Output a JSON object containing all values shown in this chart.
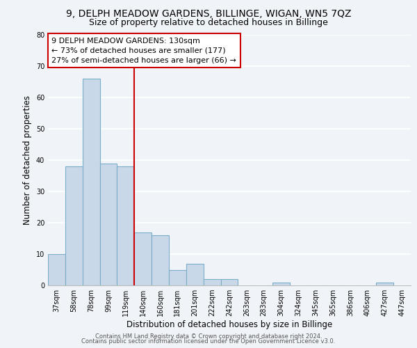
{
  "title": "9, DELPH MEADOW GARDENS, BILLINGE, WIGAN, WN5 7QZ",
  "subtitle": "Size of property relative to detached houses in Billinge",
  "xlabel": "Distribution of detached houses by size in Billinge",
  "ylabel": "Number of detached properties",
  "bar_labels": [
    "37sqm",
    "58sqm",
    "78sqm",
    "99sqm",
    "119sqm",
    "140sqm",
    "160sqm",
    "181sqm",
    "201sqm",
    "222sqm",
    "242sqm",
    "263sqm",
    "283sqm",
    "304sqm",
    "324sqm",
    "345sqm",
    "365sqm",
    "386sqm",
    "406sqm",
    "427sqm",
    "447sqm"
  ],
  "bar_values": [
    10,
    38,
    66,
    39,
    38,
    17,
    16,
    5,
    7,
    2,
    2,
    0,
    0,
    1,
    0,
    0,
    0,
    0,
    0,
    1,
    0
  ],
  "bar_color": "#c8d8e8",
  "bar_edge_color": "#7aaec8",
  "vline_x": 4.5,
  "vline_color": "#cc0000",
  "ylim": [
    0,
    80
  ],
  "yticks": [
    0,
    10,
    20,
    30,
    40,
    50,
    60,
    70,
    80
  ],
  "annotation_text_line1": "9 DELPH MEADOW GARDENS: 130sqm",
  "annotation_text_line2": "← 73% of detached houses are smaller (177)",
  "annotation_text_line3": "27% of semi-detached houses are larger (66) →",
  "annotation_box_color": "#ffffff",
  "annotation_box_edge": "#cc0000",
  "footer_line1": "Contains HM Land Registry data © Crown copyright and database right 2024.",
  "footer_line2": "Contains public sector information licensed under the Open Government Licence v3.0.",
  "background_color": "#f0f4f8",
  "grid_color": "#ffffff",
  "title_fontsize": 10,
  "subtitle_fontsize": 9,
  "tick_fontsize": 7,
  "ylabel_fontsize": 8.5,
  "xlabel_fontsize": 8.5,
  "annotation_fontsize": 8,
  "footer_fontsize": 6
}
